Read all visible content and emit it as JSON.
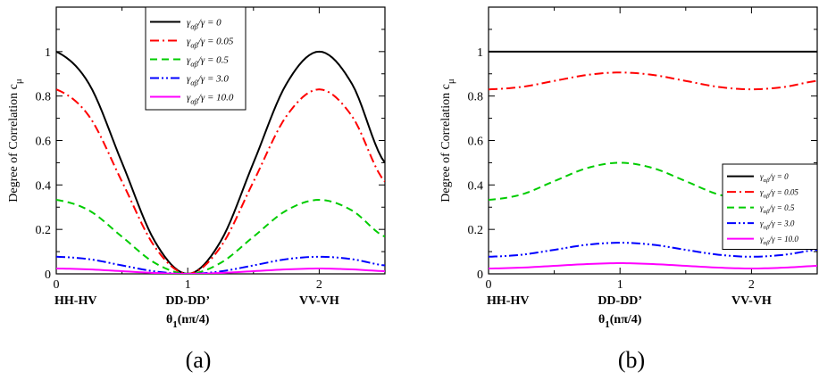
{
  "chart_data": [
    {
      "type": "line",
      "panel_label": "(a)",
      "xlabel": "θ1(nπ/4)",
      "ylabel": "Degree of Correlation cμ",
      "xlim": [
        0,
        2.5
      ],
      "ylim": [
        0,
        1.2
      ],
      "xticks": [
        "0",
        "1",
        "2"
      ],
      "yticks": [
        "0",
        "0.2",
        "0.4",
        "0.6",
        "0.8",
        "1"
      ],
      "category_labels": [
        "HH-HV",
        "DD-DD’",
        "VV-VH"
      ],
      "legend": {
        "position": "top-center",
        "border": true
      },
      "series": [
        {
          "name": "γαβ/γ = 0",
          "color": "#000000",
          "dash": "solid",
          "x": [
            0,
            0.25,
            0.5,
            0.75,
            1,
            1.25,
            1.5,
            1.75,
            2,
            2.25,
            2.5
          ],
          "y": [
            1.0,
            0.854,
            0.5,
            0.146,
            0.0,
            0.146,
            0.5,
            0.854,
            1.0,
            0.854,
            0.5
          ]
        },
        {
          "name": "γαβ/γ = 0.05",
          "color": "#ff0000",
          "dash": "dashdot",
          "x": [
            0,
            0.25,
            0.5,
            0.75,
            1,
            1.25,
            1.5,
            1.75,
            2,
            2.25,
            2.5
          ],
          "y": [
            0.83,
            0.709,
            0.415,
            0.121,
            0.0,
            0.121,
            0.415,
            0.709,
            0.83,
            0.709,
            0.415
          ]
        },
        {
          "name": "γαβ/γ = 0.5",
          "color": "#00cc00",
          "dash": "dash",
          "x": [
            0,
            0.25,
            0.5,
            0.75,
            1,
            1.25,
            1.5,
            1.75,
            2,
            2.25,
            2.5
          ],
          "y": [
            0.333,
            0.285,
            0.167,
            0.049,
            0.0,
            0.049,
            0.167,
            0.285,
            0.333,
            0.285,
            0.167
          ]
        },
        {
          "name": "γαβ/γ = 3.0",
          "color": "#0000ff",
          "dash": "dashdotdot",
          "x": [
            0,
            0.25,
            0.5,
            0.75,
            1,
            1.25,
            1.5,
            1.75,
            2,
            2.25,
            2.5
          ],
          "y": [
            0.077,
            0.066,
            0.038,
            0.011,
            0.0,
            0.011,
            0.038,
            0.066,
            0.077,
            0.066,
            0.038
          ]
        },
        {
          "name": "γαβ/γ = 10.0",
          "color": "#ff00ff",
          "dash": "solid",
          "x": [
            0,
            0.25,
            0.5,
            0.75,
            1,
            1.25,
            1.5,
            1.75,
            2,
            2.25,
            2.5
          ],
          "y": [
            0.024,
            0.02,
            0.012,
            0.004,
            0.0,
            0.004,
            0.012,
            0.02,
            0.024,
            0.02,
            0.012
          ]
        }
      ]
    },
    {
      "type": "line",
      "panel_label": "(b)",
      "xlabel": "θ1(nπ/4)",
      "ylabel": "Degree of Correlation cμ",
      "xlim": [
        0,
        2.5
      ],
      "ylim": [
        0,
        1.2
      ],
      "xticks": [
        "0",
        "1",
        "2"
      ],
      "yticks": [
        "0",
        "0.2",
        "0.4",
        "0.6",
        "0.8",
        "1"
      ],
      "category_labels": [
        "HH-HV",
        "DD-DD’",
        "VV-VH"
      ],
      "legend": {
        "position": "right",
        "border": true
      },
      "series": [
        {
          "name": "γαβ/γ = 0",
          "color": "#000000",
          "dash": "solid",
          "x": [
            0,
            0.25,
            0.5,
            0.75,
            1,
            1.25,
            1.5,
            1.75,
            2,
            2.25,
            2.5
          ],
          "y": [
            1.0,
            1.0,
            1.0,
            1.0,
            1.0,
            1.0,
            1.0,
            1.0,
            1.0,
            1.0,
            1.0
          ]
        },
        {
          "name": "γαβ/γ = 0.05",
          "color": "#ff0000",
          "dash": "dashdot",
          "x": [
            0,
            0.25,
            0.5,
            0.75,
            1,
            1.25,
            1.5,
            1.75,
            2,
            2.25,
            2.5
          ],
          "y": [
            0.83,
            0.841,
            0.868,
            0.895,
            0.906,
            0.895,
            0.868,
            0.841,
            0.83,
            0.841,
            0.868
          ]
        },
        {
          "name": "γαβ/γ = 0.5",
          "color": "#00cc00",
          "dash": "dash",
          "x": [
            0,
            0.25,
            0.5,
            0.75,
            1,
            1.25,
            1.5,
            1.75,
            2,
            2.25,
            2.5
          ],
          "y": [
            0.333,
            0.357,
            0.417,
            0.476,
            0.5,
            0.476,
            0.417,
            0.357,
            0.333,
            0.357,
            0.417
          ]
        },
        {
          "name": "γαβ/γ = 3.0",
          "color": "#0000ff",
          "dash": "dashdotdot",
          "x": [
            0,
            0.25,
            0.5,
            0.75,
            1,
            1.25,
            1.5,
            1.75,
            2,
            2.25,
            2.5
          ],
          "y": [
            0.077,
            0.086,
            0.108,
            0.131,
            0.14,
            0.131,
            0.108,
            0.086,
            0.077,
            0.086,
            0.108
          ]
        },
        {
          "name": "γαβ/γ = 10.0",
          "color": "#ff00ff",
          "dash": "solid",
          "x": [
            0,
            0.25,
            0.5,
            0.75,
            1,
            1.25,
            1.5,
            1.75,
            2,
            2.25,
            2.5
          ],
          "y": [
            0.024,
            0.028,
            0.036,
            0.044,
            0.048,
            0.044,
            0.036,
            0.028,
            0.024,
            0.028,
            0.036
          ]
        }
      ]
    }
  ]
}
